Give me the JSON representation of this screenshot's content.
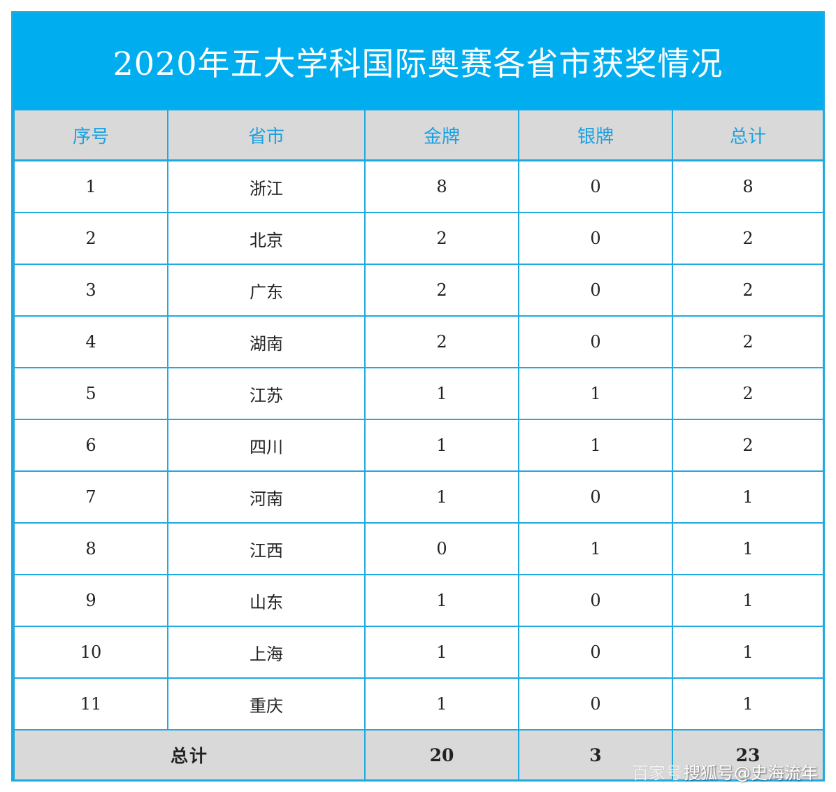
{
  "title": "2020年五大学科国际奥赛各省市获奖情况",
  "columns": [
    "序号",
    "省市",
    "金牌",
    "银牌",
    "总计"
  ],
  "rows": [
    [
      "1",
      "浙江",
      "8",
      "0",
      "8"
    ],
    [
      "2",
      "北京",
      "2",
      "0",
      "2"
    ],
    [
      "3",
      "广东",
      "2",
      "0",
      "2"
    ],
    [
      "4",
      "湖南",
      "2",
      "0",
      "2"
    ],
    [
      "5",
      "江苏",
      "1",
      "1",
      "2"
    ],
    [
      "6",
      "四川",
      "1",
      "1",
      "2"
    ],
    [
      "7",
      "河南",
      "1",
      "0",
      "1"
    ],
    [
      "8",
      "江西",
      "0",
      "1",
      "1"
    ],
    [
      "9",
      "山东",
      "1",
      "0",
      "1"
    ],
    [
      "10",
      "上海",
      "1",
      "0",
      "1"
    ],
    [
      "11",
      "重庆",
      "1",
      "0",
      "1"
    ]
  ],
  "totals": {
    "label": "总计",
    "gold": "20",
    "silver": "3",
    "total": "23"
  },
  "watermark": {
    "faint_text": "百家号",
    "text": "搜狐号@史海流年"
  },
  "colors": {
    "accent": "#00aeef",
    "border": "#1fa9e1",
    "header_bg": "#d9d9d9"
  }
}
